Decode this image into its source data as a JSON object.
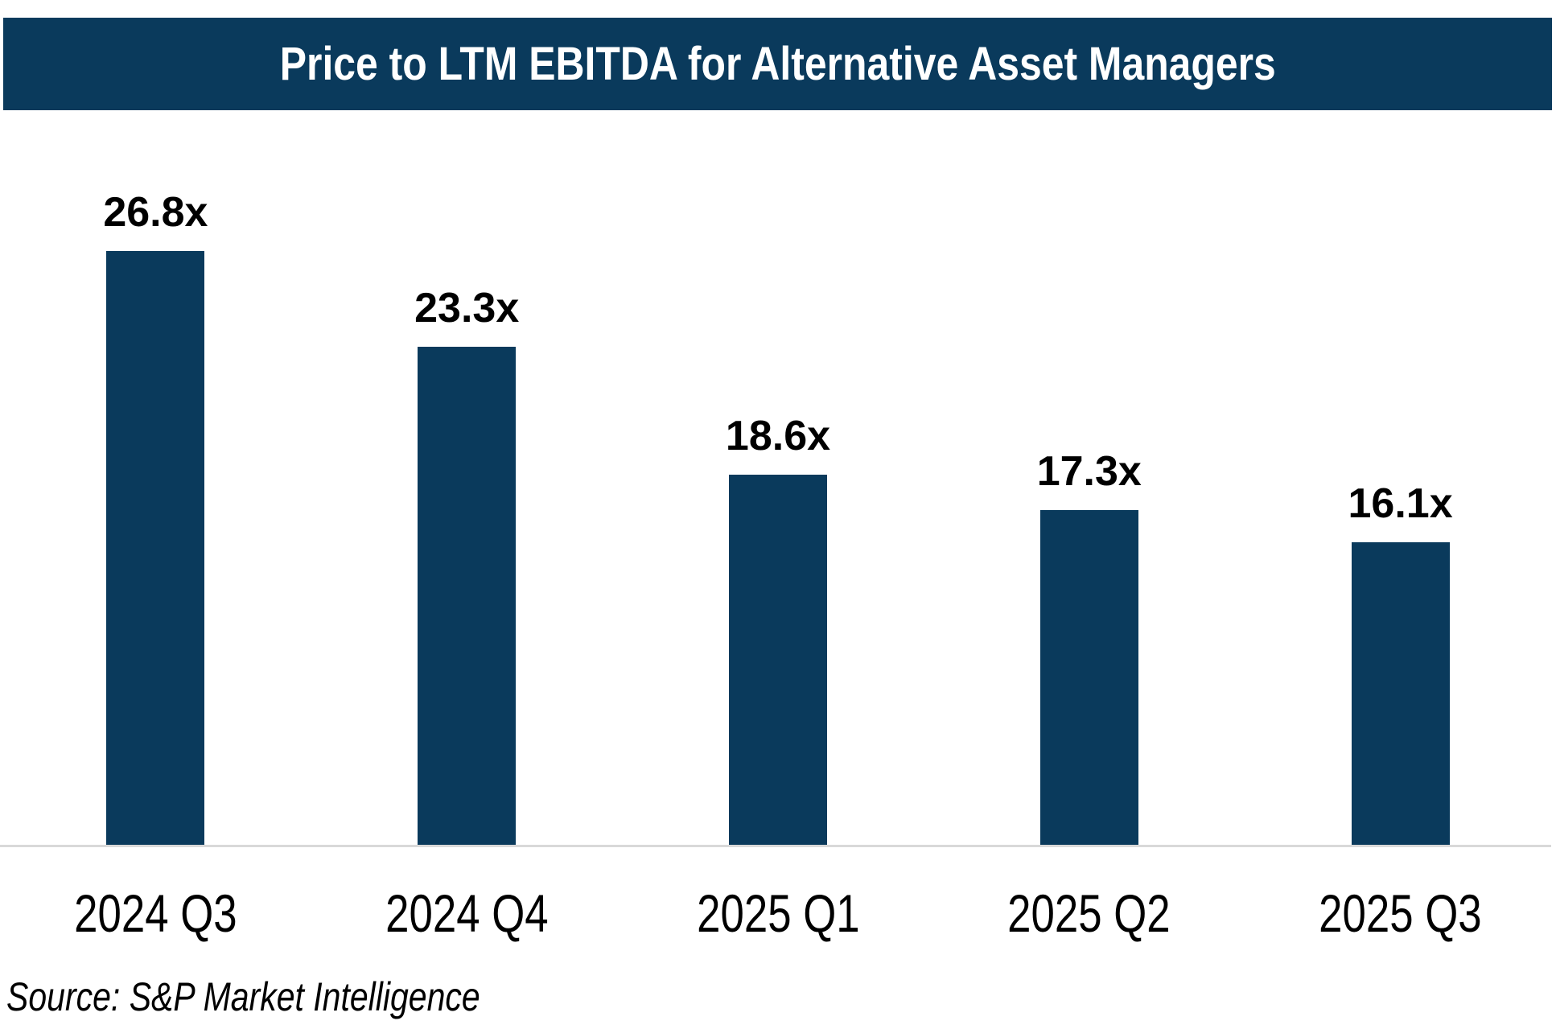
{
  "header": {
    "title": "Price to LTM EBITDA for Alternative Asset Managers",
    "background_color": "#0A3A5C",
    "text_color": "#FFFFFF"
  },
  "chart_data": {
    "type": "bar",
    "title": "Price to LTM EBITDA for Alternative Asset Managers",
    "categories": [
      "2024 Q3",
      "2024 Q4",
      "2025 Q1",
      "2025 Q2",
      "2025 Q3"
    ],
    "values": [
      26.8,
      23.3,
      18.6,
      17.3,
      16.1
    ],
    "labels": [
      "26.8x",
      "23.3x",
      "18.6x",
      "17.3x",
      "16.1x"
    ],
    "bar_color": "#0A3A5C",
    "axis_line_color": "#D9D9D9",
    "ylim": [
      5,
      30
    ],
    "grid": false,
    "legend": false,
    "xlabel": "",
    "ylabel": ""
  },
  "footer": {
    "source": "Source: S&P Market Intelligence"
  }
}
